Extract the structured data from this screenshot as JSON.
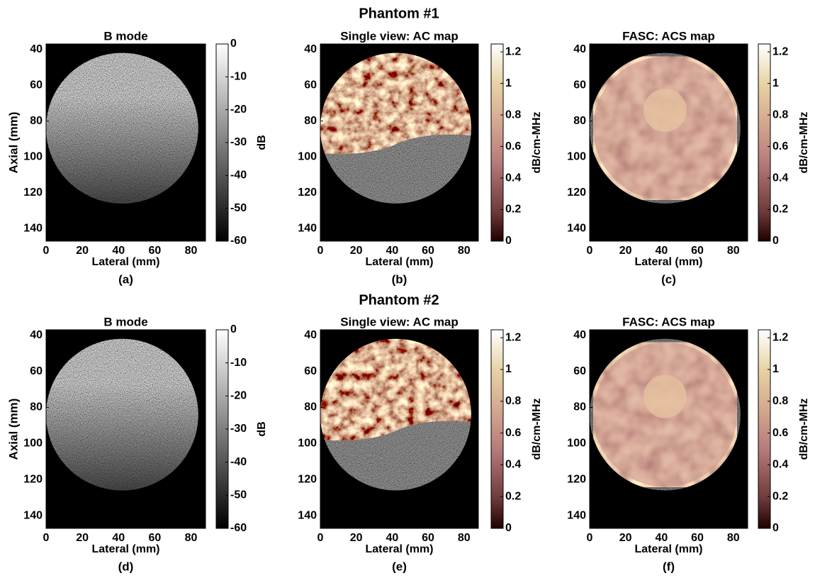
{
  "headings": [
    "Phantom #1",
    "Phantom #2"
  ],
  "chart_data": [
    {
      "type": "heatmap",
      "title": "B mode",
      "xlabel": "Lateral (mm)",
      "ylabel": "Axial (mm)",
      "caption": "(a)",
      "xlim": [
        0,
        88
      ],
      "ylim": [
        37,
        147
      ],
      "xticks": [
        0,
        20,
        40,
        60,
        80
      ],
      "yticks": [
        40,
        60,
        80,
        100,
        120,
        140
      ],
      "colorbar": {
        "label": "dB",
        "colormap": "gray",
        "lim": [
          -60,
          0
        ],
        "ticks": [
          0,
          -10,
          -20,
          -30,
          -40,
          -50,
          -60
        ]
      }
    },
    {
      "type": "heatmap",
      "title": "Single view: AC map",
      "xlabel": "Lateral (mm)",
      "caption": "(b)",
      "xlim": [
        0,
        88
      ],
      "ylim": [
        37,
        147
      ],
      "xticks": [
        0,
        20,
        40,
        60,
        80
      ],
      "yticks": [
        40,
        60,
        80,
        100,
        120,
        140
      ],
      "colorbar": {
        "label": "dB/cm-MHz",
        "colormap": "pink",
        "lim": [
          0,
          1.25
        ],
        "ticks": [
          0,
          0.2,
          0.4,
          0.6,
          0.8,
          1,
          1.2
        ]
      }
    },
    {
      "type": "heatmap",
      "title": "FASC: ACS map",
      "xlabel": "Lateral (mm)",
      "caption": "(c)",
      "xlim": [
        0,
        88
      ],
      "ylim": [
        37,
        147
      ],
      "xticks": [
        0,
        20,
        40,
        60,
        80
      ],
      "yticks": [
        40,
        60,
        80,
        100,
        120,
        140
      ],
      "colorbar": {
        "label": "dB/cm-MHz",
        "colormap": "pink",
        "lim": [
          0,
          1.25
        ],
        "ticks": [
          0,
          0.2,
          0.4,
          0.6,
          0.8,
          1,
          1.2
        ]
      }
    },
    {
      "type": "heatmap",
      "title": "B mode",
      "xlabel": "Lateral (mm)",
      "ylabel": "Axial (mm)",
      "caption": "(d)",
      "xlim": [
        0,
        88
      ],
      "ylim": [
        37,
        147
      ],
      "xticks": [
        0,
        20,
        40,
        60,
        80
      ],
      "yticks": [
        40,
        60,
        80,
        100,
        120,
        140
      ],
      "colorbar": {
        "label": "dB",
        "colormap": "gray",
        "lim": [
          -60,
          0
        ],
        "ticks": [
          0,
          -10,
          -20,
          -30,
          -40,
          -50,
          -60
        ]
      }
    },
    {
      "type": "heatmap",
      "title": "Single view: AC map",
      "xlabel": "Lateral (mm)",
      "caption": "(e)",
      "xlim": [
        0,
        88
      ],
      "ylim": [
        37,
        147
      ],
      "xticks": [
        0,
        20,
        40,
        60,
        80
      ],
      "yticks": [
        40,
        60,
        80,
        100,
        120,
        140
      ],
      "colorbar": {
        "label": "dB/cm-MHz",
        "colormap": "pink",
        "lim": [
          0,
          1.25
        ],
        "ticks": [
          0,
          0.2,
          0.4,
          0.6,
          0.8,
          1,
          1.2
        ]
      }
    },
    {
      "type": "heatmap",
      "title": "FASC: ACS map",
      "xlabel": "Lateral (mm)",
      "caption": "(f)",
      "xlim": [
        0,
        88
      ],
      "ylim": [
        37,
        147
      ],
      "xticks": [
        0,
        20,
        40,
        60,
        80
      ],
      "yticks": [
        40,
        60,
        80,
        100,
        120,
        140
      ],
      "colorbar": {
        "label": "dB/cm-MHz",
        "colormap": "pink",
        "lim": [
          0,
          1.25
        ],
        "ticks": [
          0,
          0.2,
          0.4,
          0.6,
          0.8,
          1,
          1.2
        ]
      }
    }
  ]
}
